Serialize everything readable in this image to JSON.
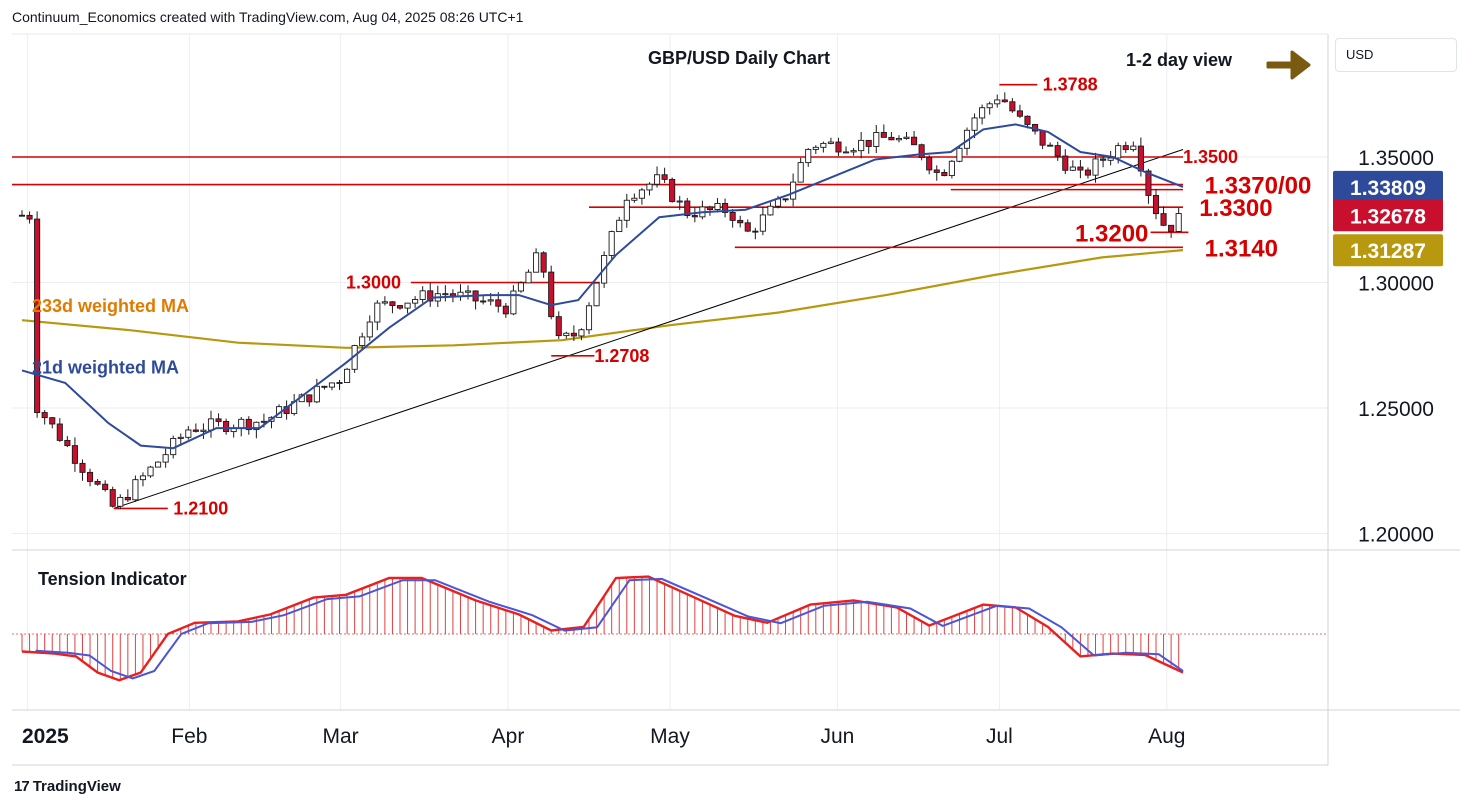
{
  "header": {
    "credit": "Continuum_Economics created with TradingView.com, Aug 04, 2025 08:26 UTC+1"
  },
  "currency_button": {
    "label": "USD"
  },
  "footer": {
    "brand": "TradingView",
    "logo_icon": "tradingview-logo-icon"
  },
  "colors": {
    "up": "#ffffff",
    "down": "#c8102e",
    "ma21": "#2e4a9a",
    "ma233": "#b8980f",
    "level": "#d60000",
    "trend": "#000000",
    "arrow": "#7a5a10",
    "tension_bar": "#e04040",
    "tension_red": "#e82020",
    "tension_blue": "#4a55d8",
    "tag_last": "#c8102e",
    "tag_ma21": "#2e4a9a",
    "tag_ma233": "#b8980f"
  },
  "chart_data": [
    {
      "type": "candlestick",
      "title": "GBP/USD Daily Chart",
      "view_label": "1-2 day view",
      "view_arrow_icon": "right-arrow-icon",
      "y_ticks": [
        {
          "value": 1.35,
          "label": "1.35000"
        },
        {
          "value": 1.3,
          "label": "1.30000"
        },
        {
          "value": 1.25,
          "label": "1.25000"
        },
        {
          "value": 1.2,
          "label": "1.20000"
        }
      ],
      "ylim": [
        1.1995,
        1.396
      ],
      "x_month_labels": [
        {
          "day": 1,
          "label": "2025"
        },
        {
          "day": 31,
          "label": "Feb"
        },
        {
          "day": 59,
          "label": "Mar"
        },
        {
          "day": 90,
          "label": "Apr"
        },
        {
          "day": 120,
          "label": "May"
        },
        {
          "day": 151,
          "label": "Jun"
        },
        {
          "day": 181,
          "label": "Jul"
        },
        {
          "day": 212,
          "label": "Aug"
        }
      ],
      "price_tags": [
        {
          "value": 1.33809,
          "label": "1.33809",
          "color": "#2e4a9a"
        },
        {
          "value": 1.32678,
          "label": "1.32678",
          "color": "#c8102e"
        },
        {
          "value": 1.31287,
          "label": "1.31287",
          "color": "#b8980f"
        }
      ],
      "levels": [
        {
          "label": "1.3788",
          "value": 1.3788,
          "x_start": 181,
          "x_end": 188,
          "label_day": 189
        },
        {
          "label": "1.3500",
          "value": 1.35,
          "x_start": 0,
          "x_end": 215,
          "label_day": 215
        },
        {
          "label": "1.3370/00",
          "value": 1.339,
          "x_start": 0,
          "x_end": 215,
          "label_day": 219
        },
        {
          "label": "",
          "value": 1.337,
          "x_start": 172,
          "x_end": 215,
          "label_day": 215
        },
        {
          "label": "1.3300",
          "value": 1.33,
          "x_start": 105,
          "x_end": 215,
          "label_day": 218
        },
        {
          "label": "1.3200",
          "value": 1.32,
          "x_start": 209,
          "x_end": 216,
          "label_day": 195
        },
        {
          "label": "1.3140",
          "value": 1.314,
          "x_start": 132,
          "x_end": 215,
          "label_day": 219
        },
        {
          "label": "1.3000",
          "value": 1.3,
          "x_start": 72,
          "x_end": 107,
          "label_day": 60
        },
        {
          "label": "1.2708",
          "value": 1.2708,
          "x_start": 98,
          "x_end": 106,
          "label_day": 106
        },
        {
          "label": "1.2100",
          "value": 1.21,
          "x_start": 17,
          "x_end": 27,
          "label_day": 28
        }
      ],
      "trendline": {
        "from": {
          "day": 17,
          "value": 1.21
        },
        "to": {
          "day": 215,
          "value": 1.353
        }
      },
      "series_labels": [
        {
          "name": "233d weighted MA",
          "day": 5,
          "value": 1.2915,
          "color": "#e07b00"
        },
        {
          "name": "21d weighted MA",
          "day": 3,
          "value": 1.267,
          "color": "#2e4a9a"
        }
      ],
      "key_points": [
        {
          "day": 2,
          "value": 1.253
        },
        {
          "day": 17,
          "value": 1.21
        },
        {
          "day": 31,
          "value": 1.242
        },
        {
          "day": 45,
          "value": 1.245
        },
        {
          "day": 59,
          "value": 1.262
        },
        {
          "day": 65,
          "value": 1.29
        },
        {
          "day": 78,
          "value": 1.296
        },
        {
          "day": 90,
          "value": 1.29
        },
        {
          "day": 96,
          "value": 1.312
        },
        {
          "day": 99,
          "value": 1.276
        },
        {
          "day": 103,
          "value": 1.28
        },
        {
          "day": 112,
          "value": 1.335
        },
        {
          "day": 118,
          "value": 1.341
        },
        {
          "day": 123,
          "value": 1.328
        },
        {
          "day": 131,
          "value": 1.329
        },
        {
          "day": 134,
          "value": 1.319
        },
        {
          "day": 141,
          "value": 1.333
        },
        {
          "day": 146,
          "value": 1.355
        },
        {
          "day": 154,
          "value": 1.355
        },
        {
          "day": 161,
          "value": 1.358
        },
        {
          "day": 166,
          "value": 1.353
        },
        {
          "day": 170,
          "value": 1.342
        },
        {
          "day": 176,
          "value": 1.365
        },
        {
          "day": 181,
          "value": 1.375
        },
        {
          "day": 185,
          "value": 1.364
        },
        {
          "day": 192,
          "value": 1.35
        },
        {
          "day": 196,
          "value": 1.342
        },
        {
          "day": 203,
          "value": 1.354
        },
        {
          "day": 206,
          "value": 1.357
        },
        {
          "day": 209,
          "value": 1.333
        },
        {
          "day": 212,
          "value": 1.321
        },
        {
          "day": 215,
          "value": 1.3268
        }
      ],
      "ma21_points": [
        {
          "day": 0,
          "value": 1.265
        },
        {
          "day": 8,
          "value": 1.26
        },
        {
          "day": 16,
          "value": 1.244
        },
        {
          "day": 22,
          "value": 1.235
        },
        {
          "day": 28,
          "value": 1.234
        },
        {
          "day": 36,
          "value": 1.242
        },
        {
          "day": 44,
          "value": 1.242
        },
        {
          "day": 52,
          "value": 1.255
        },
        {
          "day": 60,
          "value": 1.268
        },
        {
          "day": 68,
          "value": 1.282
        },
        {
          "day": 76,
          "value": 1.294
        },
        {
          "day": 86,
          "value": 1.295
        },
        {
          "day": 92,
          "value": 1.295
        },
        {
          "day": 98,
          "value": 1.291
        },
        {
          "day": 103,
          "value": 1.293
        },
        {
          "day": 110,
          "value": 1.311
        },
        {
          "day": 118,
          "value": 1.326
        },
        {
          "day": 126,
          "value": 1.328
        },
        {
          "day": 134,
          "value": 1.329
        },
        {
          "day": 142,
          "value": 1.335
        },
        {
          "day": 150,
          "value": 1.342
        },
        {
          "day": 158,
          "value": 1.349
        },
        {
          "day": 166,
          "value": 1.351
        },
        {
          "day": 172,
          "value": 1.352
        },
        {
          "day": 178,
          "value": 1.361
        },
        {
          "day": 184,
          "value": 1.363
        },
        {
          "day": 190,
          "value": 1.36
        },
        {
          "day": 196,
          "value": 1.352
        },
        {
          "day": 202,
          "value": 1.35
        },
        {
          "day": 208,
          "value": 1.344
        },
        {
          "day": 215,
          "value": 1.3381
        }
      ],
      "ma233_points": [
        {
          "day": 0,
          "value": 1.285
        },
        {
          "day": 20,
          "value": 1.281
        },
        {
          "day": 40,
          "value": 1.276
        },
        {
          "day": 60,
          "value": 1.274
        },
        {
          "day": 80,
          "value": 1.275
        },
        {
          "day": 100,
          "value": 1.277
        },
        {
          "day": 120,
          "value": 1.283
        },
        {
          "day": 140,
          "value": 1.288
        },
        {
          "day": 160,
          "value": 1.295
        },
        {
          "day": 180,
          "value": 1.303
        },
        {
          "day": 200,
          "value": 1.31
        },
        {
          "day": 215,
          "value": 1.3129
        }
      ]
    },
    {
      "type": "bar",
      "title": "Tension Indicator",
      "ylim": [
        -1,
        1
      ],
      "zero_line": 0,
      "points": [
        {
          "day": 0,
          "value": -0.25
        },
        {
          "day": 6,
          "value": -0.28
        },
        {
          "day": 10,
          "value": -0.32
        },
        {
          "day": 14,
          "value": -0.55
        },
        {
          "day": 18,
          "value": -0.66
        },
        {
          "day": 22,
          "value": -0.55
        },
        {
          "day": 27,
          "value": 0.0
        },
        {
          "day": 32,
          "value": 0.16
        },
        {
          "day": 40,
          "value": 0.18
        },
        {
          "day": 46,
          "value": 0.28
        },
        {
          "day": 54,
          "value": 0.52
        },
        {
          "day": 60,
          "value": 0.56
        },
        {
          "day": 68,
          "value": 0.8
        },
        {
          "day": 74,
          "value": 0.8
        },
        {
          "day": 84,
          "value": 0.48
        },
        {
          "day": 92,
          "value": 0.28
        },
        {
          "day": 98,
          "value": 0.05
        },
        {
          "day": 104,
          "value": 0.1
        },
        {
          "day": 110,
          "value": 0.8
        },
        {
          "day": 116,
          "value": 0.82
        },
        {
          "day": 124,
          "value": 0.54
        },
        {
          "day": 132,
          "value": 0.26
        },
        {
          "day": 138,
          "value": 0.16
        },
        {
          "day": 146,
          "value": 0.42
        },
        {
          "day": 154,
          "value": 0.48
        },
        {
          "day": 162,
          "value": 0.38
        },
        {
          "day": 168,
          "value": 0.12
        },
        {
          "day": 174,
          "value": 0.3
        },
        {
          "day": 178,
          "value": 0.42
        },
        {
          "day": 184,
          "value": 0.38
        },
        {
          "day": 190,
          "value": 0.1
        },
        {
          "day": 196,
          "value": -0.32
        },
        {
          "day": 202,
          "value": -0.28
        },
        {
          "day": 208,
          "value": -0.3
        },
        {
          "day": 215,
          "value": -0.55
        }
      ]
    }
  ]
}
